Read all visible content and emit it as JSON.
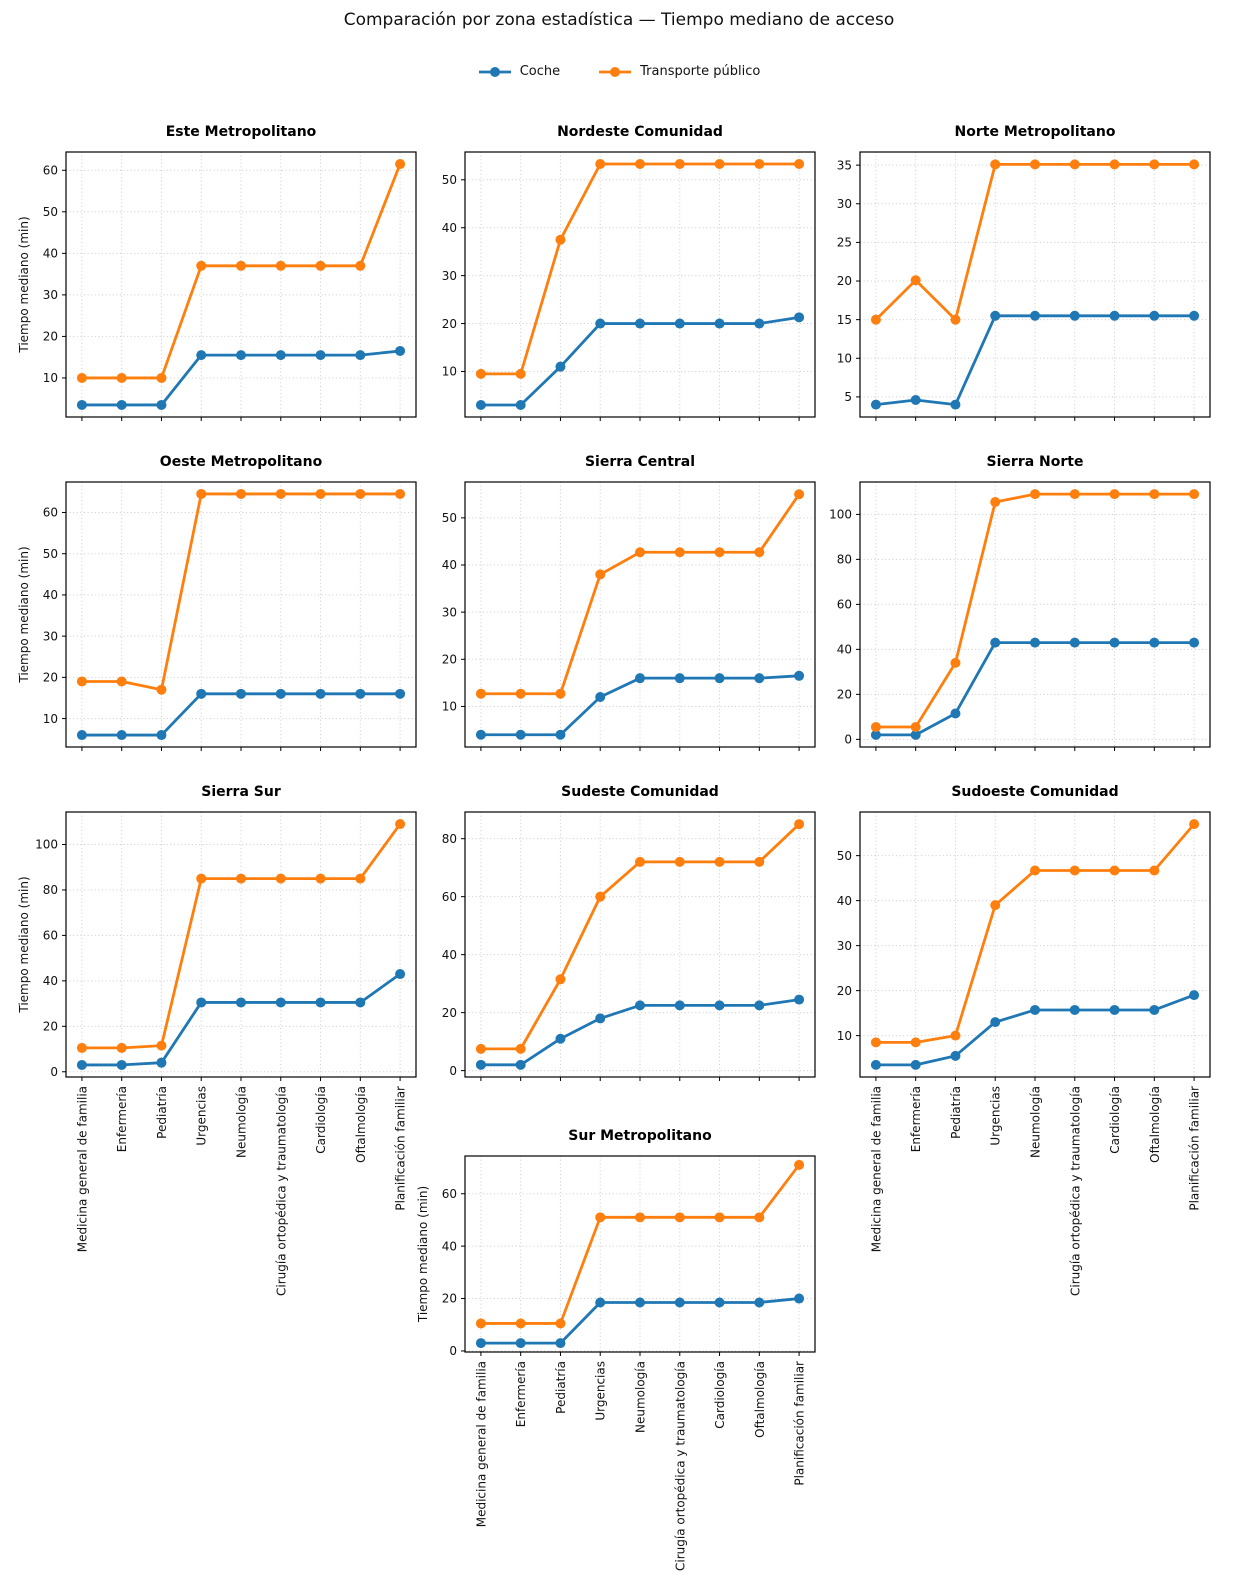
{
  "title": "Comparación por zona estadística — Tiempo mediano de acceso",
  "legend": [
    {
      "label": "Coche",
      "color": "#1f77b4"
    },
    {
      "label": "Transporte público",
      "color": "#ff7f0e"
    }
  ],
  "chart_data": {
    "type": "line",
    "title": "Comparación por zona estadística — Tiempo mediano de acceso",
    "grid": true,
    "legend_position": "top-center",
    "ylabel": "Tiempo mediano (min)",
    "series_names": [
      "Coche",
      "Transporte público"
    ],
    "series_colors": [
      "#1f77b4",
      "#ff7f0e"
    ],
    "categories": [
      "Medicina general de familia",
      "Enfermería",
      "Pediatría",
      "Urgencias",
      "Neumología",
      "Cirugía ortopédica y traumatología",
      "Cardiología",
      "Oftalmología",
      "Planificación familiar"
    ],
    "subplots": [
      {
        "title": "Este Metropolitano",
        "ylim": [
          0.6,
          64.4
        ],
        "yticks": [
          10,
          20,
          30,
          40,
          50,
          60
        ],
        "show_ylabel": true,
        "show_xlabels": false,
        "series": [
          {
            "name": "Coche",
            "values": [
              3.5,
              3.5,
              3.5,
              15.5,
              15.5,
              15.5,
              15.5,
              15.5,
              16.5
            ]
          },
          {
            "name": "Transporte público",
            "values": [
              10,
              10,
              10,
              37,
              37,
              37,
              37,
              37,
              61.5
            ]
          }
        ]
      },
      {
        "title": "Nordeste Comunidad",
        "ylim": [
          0.5,
          55.8
        ],
        "yticks": [
          10,
          20,
          30,
          40,
          50
        ],
        "show_ylabel": false,
        "show_xlabels": false,
        "series": [
          {
            "name": "Coche",
            "values": [
              3,
              3,
              11,
              20,
              20,
              20,
              20,
              20,
              21.3
            ]
          },
          {
            "name": "Transporte público",
            "values": [
              9.5,
              9.5,
              37.5,
              53.3,
              53.3,
              53.3,
              53.3,
              53.3,
              53.3
            ]
          }
        ]
      },
      {
        "title": "Norte Metropolitano",
        "ylim": [
          2.4,
          36.7
        ],
        "yticks": [
          5,
          10,
          15,
          20,
          25,
          30,
          35
        ],
        "show_ylabel": false,
        "show_xlabels": false,
        "series": [
          {
            "name": "Coche",
            "values": [
              4,
              4.6,
              4,
              15.5,
              15.5,
              15.5,
              15.5,
              15.5,
              15.5
            ]
          },
          {
            "name": "Transporte público",
            "values": [
              15,
              20.1,
              15,
              35.1,
              35.1,
              35.1,
              35.1,
              35.1,
              35.1
            ]
          }
        ]
      },
      {
        "title": "Oeste Metropolitano",
        "ylim": [
          3.1,
          67.4
        ],
        "yticks": [
          10,
          20,
          30,
          40,
          50,
          60
        ],
        "show_ylabel": true,
        "show_xlabels": false,
        "series": [
          {
            "name": "Coche",
            "values": [
              6,
              6,
              6,
              16,
              16,
              16,
              16,
              16,
              16
            ]
          },
          {
            "name": "Transporte público",
            "values": [
              19,
              19,
              17,
              64.5,
              64.5,
              64.5,
              64.5,
              64.5,
              64.5
            ]
          }
        ]
      },
      {
        "title": "Sierra Central",
        "ylim": [
          1.4,
          57.6
        ],
        "yticks": [
          10,
          20,
          30,
          40,
          50
        ],
        "show_ylabel": false,
        "show_xlabels": false,
        "series": [
          {
            "name": "Coche",
            "values": [
              4,
              4,
              4,
              12,
              16,
              16,
              16,
              16,
              16.5
            ]
          },
          {
            "name": "Transporte público",
            "values": [
              12.7,
              12.7,
              12.7,
              38,
              42.7,
              42.7,
              42.7,
              42.7,
              55
            ]
          }
        ]
      },
      {
        "title": "Sierra Norte",
        "ylim": [
          -3.4,
          114.4
        ],
        "yticks": [
          0,
          20,
          40,
          60,
          80,
          100
        ],
        "show_ylabel": false,
        "show_xlabels": false,
        "series": [
          {
            "name": "Coche",
            "values": [
              2,
              2,
              11.5,
              43,
              43,
              43,
              43,
              43,
              43
            ]
          },
          {
            "name": "Transporte público",
            "values": [
              5.5,
              5.5,
              34,
              105.5,
              109,
              109,
              109,
              109,
              109
            ]
          }
        ]
      },
      {
        "title": "Sierra Sur",
        "ylim": [
          -2.3,
          114.3
        ],
        "yticks": [
          0,
          20,
          40,
          60,
          80,
          100
        ],
        "show_ylabel": true,
        "show_xlabels": true,
        "series": [
          {
            "name": "Coche",
            "values": [
              3,
              3,
              4,
              30.5,
              30.5,
              30.5,
              30.5,
              30.5,
              43
            ]
          },
          {
            "name": "Transporte público",
            "values": [
              10.5,
              10.5,
              11.5,
              85,
              85,
              85,
              85,
              85,
              109
            ]
          }
        ]
      },
      {
        "title": "Sudeste Comunidad",
        "ylim": [
          -2.2,
          89.2
        ],
        "yticks": [
          0,
          20,
          40,
          60,
          80
        ],
        "show_ylabel": false,
        "show_xlabels": false,
        "series": [
          {
            "name": "Coche",
            "values": [
              2,
              2,
              11,
              18,
              22.5,
              22.5,
              22.5,
              22.5,
              24.5
            ]
          },
          {
            "name": "Transporte público",
            "values": [
              7.5,
              7.5,
              31.5,
              60,
              72,
              72,
              72,
              72,
              85
            ]
          }
        ]
      },
      {
        "title": "Sudoeste Comunidad",
        "ylim": [
          0.8,
          59.7
        ],
        "yticks": [
          10,
          20,
          30,
          40,
          50
        ],
        "show_ylabel": false,
        "show_xlabels": true,
        "series": [
          {
            "name": "Coche",
            "values": [
              3.5,
              3.5,
              5.5,
              13,
              15.7,
              15.7,
              15.7,
              15.7,
              19
            ]
          },
          {
            "name": "Transporte público",
            "values": [
              8.5,
              8.5,
              10,
              39,
              46.7,
              46.7,
              46.7,
              46.7,
              57
            ]
          }
        ]
      },
      {
        "title": "Sur Metropolitano",
        "ylim": [
          -0.4,
          74.4
        ],
        "yticks": [
          0,
          20,
          40,
          60
        ],
        "show_ylabel": true,
        "show_xlabels": true,
        "series": [
          {
            "name": "Coche",
            "values": [
              3,
              3,
              3,
              18.5,
              18.5,
              18.5,
              18.5,
              18.5,
              20
            ]
          },
          {
            "name": "Transporte público",
            "values": [
              10.5,
              10.5,
              10.5,
              51,
              51,
              51,
              51,
              51,
              71
            ]
          }
        ]
      }
    ]
  }
}
